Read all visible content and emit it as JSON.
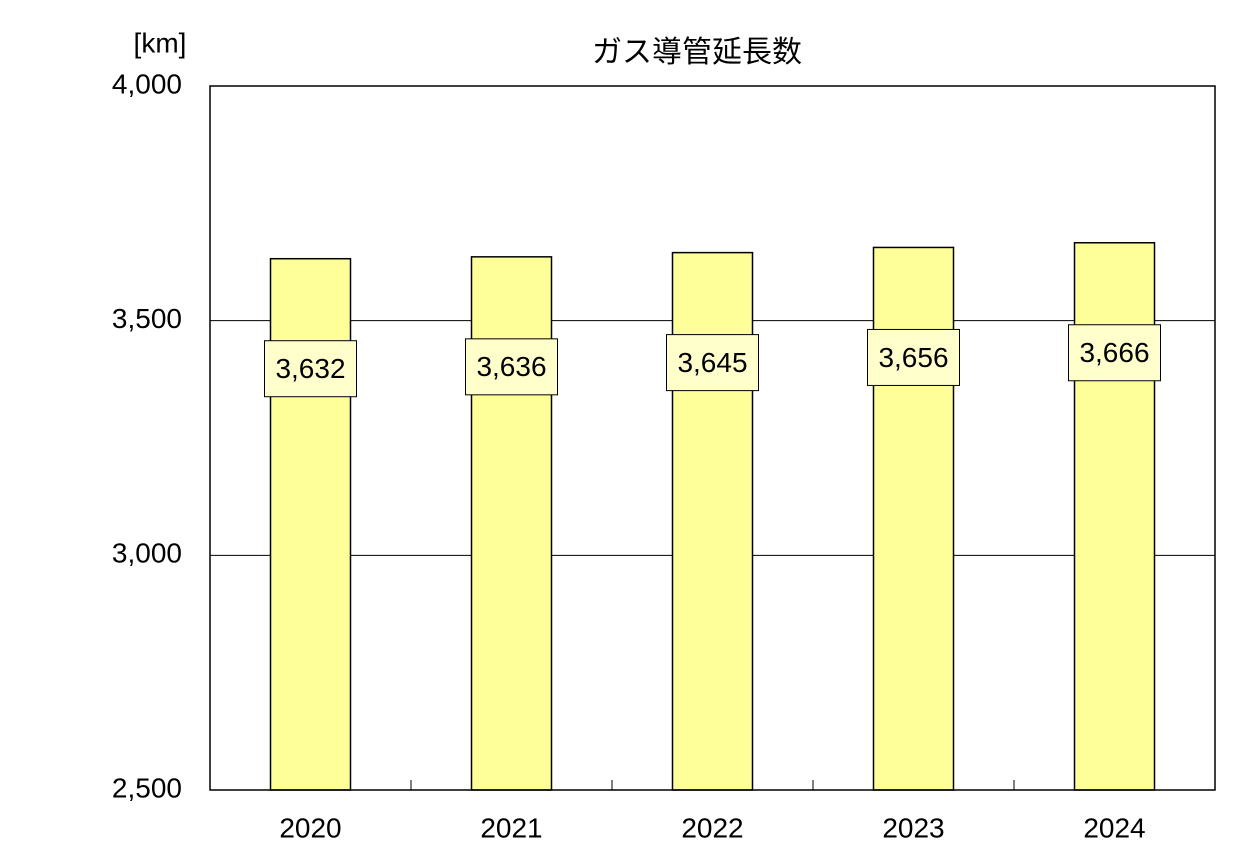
{
  "chart_data": {
    "type": "bar",
    "title": "ガス導管延長数",
    "y_axis_label": "[km]",
    "categories": [
      "2020",
      "2021",
      "2022",
      "2023",
      "2024"
    ],
    "values": [
      3632,
      3636,
      3645,
      3656,
      3666
    ],
    "value_labels": [
      "3,632",
      "3,636",
      "3,645",
      "3,656",
      "3,666"
    ],
    "color": "#ffff99",
    "ylim": [
      2500,
      4000
    ],
    "yticks": [
      {
        "value": 2500,
        "label": "2,500"
      },
      {
        "value": 3000,
        "label": "3,000"
      },
      {
        "value": 3500,
        "label": "3,500"
      },
      {
        "value": 4000,
        "label": "4,000"
      }
    ],
    "grid": true
  }
}
